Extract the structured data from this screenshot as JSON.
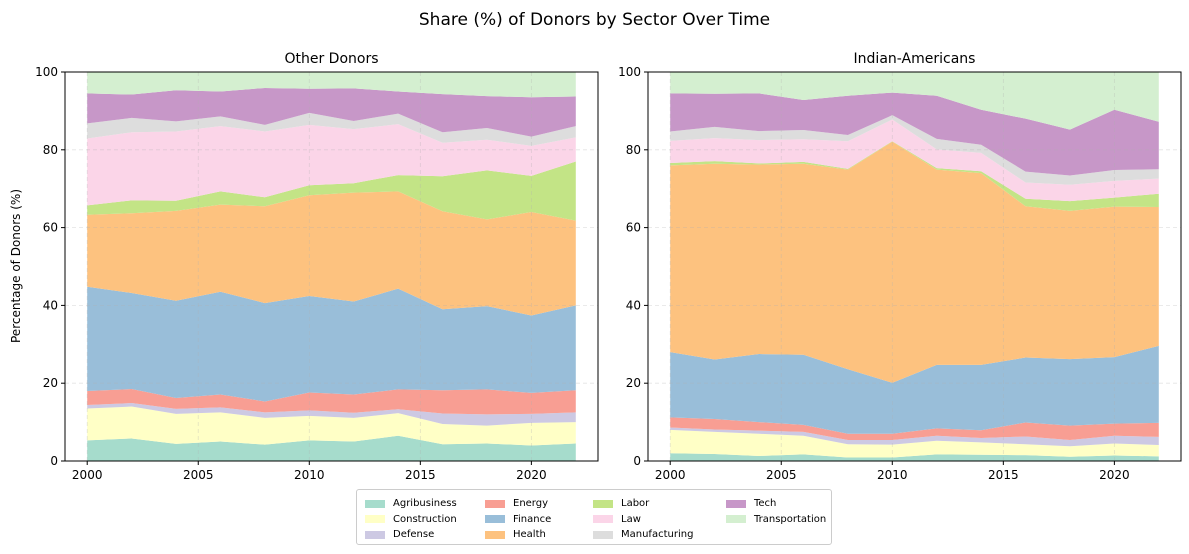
{
  "figure": {
    "title": "Share (%) of Donors by Sector Over Time",
    "ylabel": "Percentage of Donors (%)"
  },
  "colors": {
    "Agribusiness": "#a6dccc",
    "Construction": "#ffffc6",
    "Defense": "#cdc9e3",
    "Energy": "#f89e93",
    "Finance": "#99bed9",
    "Health": "#fdc27f",
    "Labor": "#c3e486",
    "Law": "#fbd5e8",
    "Manufacturing": "#dddddd",
    "Tech": "#c797c8",
    "Transportation": "#d4efd0"
  },
  "legend": {
    "entries": [
      "Agribusiness",
      "Construction",
      "Defense",
      "Energy",
      "Finance",
      "Health",
      "Labor",
      "Law",
      "Manufacturing",
      "Tech",
      "Transportation"
    ],
    "placement": "bottom-center"
  },
  "chart_data": [
    {
      "type": "area",
      "stacked": true,
      "title": "Other Donors",
      "ylabel": "Percentage of Donors (%)",
      "xlim": [
        1999,
        2023
      ],
      "ylim": [
        0,
        100
      ],
      "xticks": [
        2000,
        2005,
        2010,
        2015,
        2020
      ],
      "yticks": [
        0,
        20,
        40,
        60,
        80,
        100
      ],
      "grid": true,
      "x": [
        2000,
        2002,
        2004,
        2006,
        2008,
        2010,
        2012,
        2014,
        2016,
        2018,
        2020,
        2022
      ],
      "series": [
        {
          "name": "Agribusiness",
          "values": [
            5.3,
            5.8,
            4.4,
            5.0,
            4.2,
            5.3,
            5.0,
            6.5,
            4.3,
            4.5,
            4.0,
            4.5
          ]
        },
        {
          "name": "Construction",
          "values": [
            8.2,
            8.2,
            7.7,
            7.5,
            6.9,
            6.3,
            6.1,
            5.8,
            5.2,
            4.6,
            5.8,
            5.5
          ]
        },
        {
          "name": "Defense",
          "values": [
            0.9,
            0.9,
            1.3,
            1.3,
            1.4,
            1.4,
            1.3,
            1.0,
            2.7,
            2.9,
            2.3,
            2.5
          ]
        },
        {
          "name": "Energy",
          "values": [
            3.6,
            3.6,
            2.8,
            3.3,
            2.8,
            4.6,
            4.7,
            5.1,
            6.0,
            6.4,
            5.4,
            5.7
          ]
        },
        {
          "name": "Finance",
          "values": [
            26.8,
            24.7,
            25.0,
            26.4,
            25.3,
            24.8,
            23.9,
            25.9,
            20.8,
            21.4,
            19.9,
            21.8
          ]
        },
        {
          "name": "Health",
          "values": [
            18.5,
            20.5,
            23.1,
            22.4,
            24.9,
            25.9,
            28.0,
            25.0,
            25.2,
            22.3,
            26.6,
            21.8
          ]
        },
        {
          "name": "Labor",
          "values": [
            2.4,
            3.3,
            2.6,
            3.4,
            2.3,
            2.6,
            2.4,
            4.2,
            9.0,
            12.6,
            9.3,
            15.2
          ]
        },
        {
          "name": "Law",
          "values": [
            17.2,
            17.5,
            17.8,
            16.8,
            16.9,
            15.5,
            13.9,
            13.1,
            8.6,
            7.9,
            7.7,
            6.2
          ]
        },
        {
          "name": "Manufacturing",
          "values": [
            3.9,
            3.7,
            2.6,
            2.5,
            1.7,
            3.1,
            2.1,
            2.7,
            2.7,
            3.0,
            2.4,
            2.9
          ]
        },
        {
          "name": "Tech",
          "values": [
            7.7,
            6.0,
            8.0,
            6.4,
            9.5,
            6.2,
            8.4,
            5.7,
            9.8,
            8.2,
            10.1,
            7.6
          ]
        },
        {
          "name": "Transportation",
          "values": [
            5.5,
            5.8,
            4.7,
            5.0,
            4.1,
            4.3,
            4.2,
            5.0,
            5.7,
            6.2,
            6.5,
            6.3
          ]
        }
      ]
    },
    {
      "type": "area",
      "stacked": true,
      "title": "Indian-Americans",
      "xlim": [
        1999,
        2023
      ],
      "ylim": [
        0,
        100
      ],
      "xticks": [
        2000,
        2005,
        2010,
        2015,
        2020
      ],
      "yticks": [
        0,
        20,
        40,
        60,
        80,
        100
      ],
      "grid": true,
      "x": [
        2000,
        2002,
        2004,
        2006,
        2008,
        2010,
        2012,
        2014,
        2016,
        2018,
        2020,
        2022
      ],
      "series": [
        {
          "name": "Agribusiness",
          "values": [
            2.0,
            1.8,
            1.3,
            1.7,
            0.9,
            0.9,
            1.7,
            1.6,
            1.5,
            1.1,
            1.4,
            1.2
          ]
        },
        {
          "name": "Construction",
          "values": [
            6.0,
            5.7,
            5.7,
            4.8,
            3.4,
            3.3,
            3.5,
            3.2,
            2.8,
            2.7,
            3.1,
            2.9
          ]
        },
        {
          "name": "Defense",
          "values": [
            0.6,
            0.6,
            0.8,
            1.0,
            1.1,
            1.2,
            1.3,
            1.1,
            2.0,
            1.6,
            2.0,
            2.1
          ]
        },
        {
          "name": "Energy",
          "values": [
            2.6,
            2.7,
            2.2,
            1.8,
            1.6,
            1.6,
            1.9,
            2.0,
            3.6,
            3.7,
            3.1,
            3.6
          ]
        },
        {
          "name": "Finance",
          "values": [
            16.8,
            15.3,
            17.5,
            18.0,
            16.6,
            13.1,
            16.3,
            16.8,
            16.7,
            17.1,
            17.1,
            19.8
          ]
        },
        {
          "name": "Health",
          "values": [
            48.0,
            50.3,
            48.7,
            49.1,
            51.3,
            62.0,
            50.2,
            49.3,
            38.9,
            38.1,
            38.7,
            35.7
          ]
        },
        {
          "name": "Labor",
          "values": [
            0.6,
            0.7,
            0.3,
            0.5,
            0.2,
            0.1,
            0.4,
            0.5,
            1.9,
            2.5,
            2.3,
            3.4
          ]
        },
        {
          "name": "Law",
          "values": [
            5.7,
            5.9,
            6.0,
            5.8,
            7.1,
            5.6,
            4.8,
            4.7,
            4.2,
            4.2,
            4.3,
            3.9
          ]
        },
        {
          "name": "Manufacturing",
          "values": [
            2.4,
            2.9,
            2.3,
            2.4,
            1.6,
            1.1,
            2.7,
            2.1,
            2.8,
            2.4,
            2.8,
            2.4
          ]
        },
        {
          "name": "Tech",
          "values": [
            9.8,
            8.5,
            9.7,
            7.7,
            10.1,
            5.8,
            11.1,
            9.0,
            13.6,
            11.8,
            15.5,
            12.2
          ]
        },
        {
          "name": "Transportation",
          "values": [
            5.5,
            5.6,
            5.5,
            7.2,
            6.1,
            5.3,
            6.1,
            9.7,
            12.0,
            14.8,
            9.7,
            12.8
          ]
        }
      ]
    }
  ]
}
